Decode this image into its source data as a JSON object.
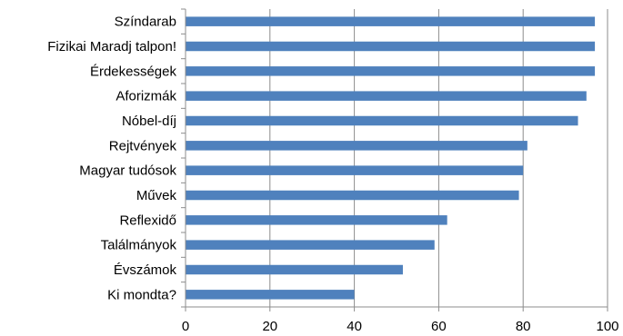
{
  "chart_data": {
    "type": "bar",
    "orientation": "horizontal",
    "categories": [
      "Színdarab",
      "Fizikai Maradj talpon!",
      "Érdekességek",
      "Aforizmák",
      "Nóbel-díj",
      "Rejtvények",
      "Magyar tudósok",
      "Művek",
      "Reflexidő",
      "Találmányok",
      "Évszámok",
      "Ki mondta?"
    ],
    "values": [
      97,
      97,
      97,
      95,
      93,
      81,
      80,
      79,
      62,
      59,
      51.5,
      40
    ],
    "xlim": [
      0,
      100
    ],
    "xticks": [
      "0",
      "20",
      "40",
      "60",
      "80",
      "100"
    ],
    "xlabel": "",
    "ylabel": "",
    "title": "",
    "grid": "vertical",
    "legend": "none",
    "bar_color": "#4f81bd",
    "grid_color": "#8c8c8c"
  }
}
